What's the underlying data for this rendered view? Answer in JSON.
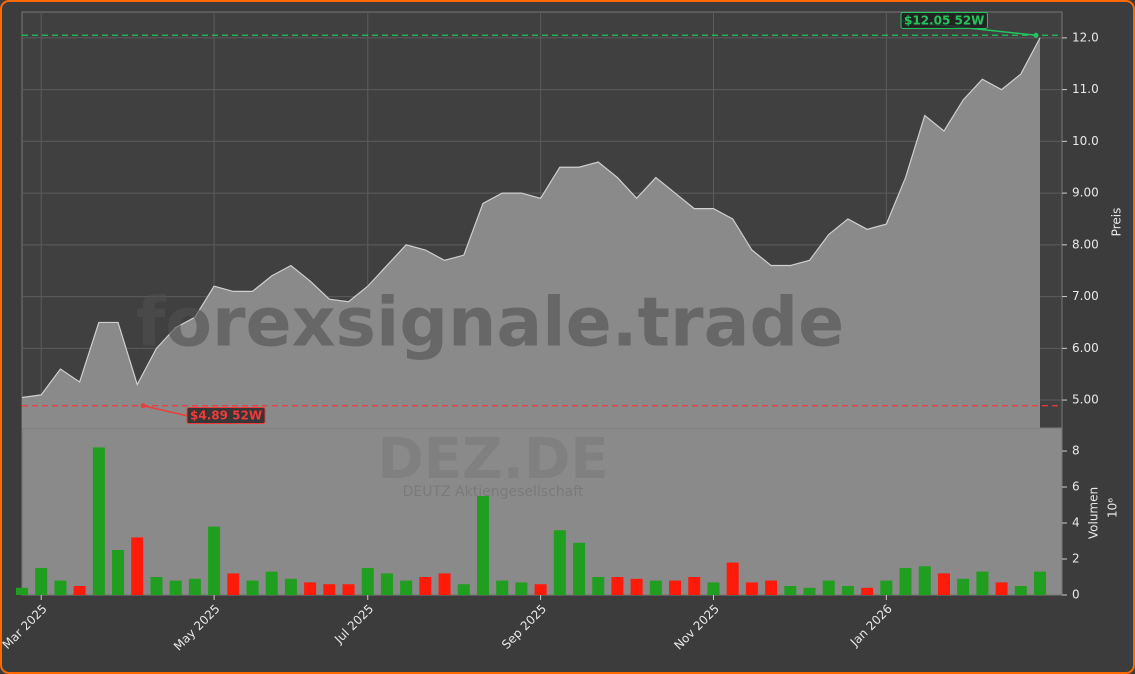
{
  "chart_data": {
    "type": "area-volume",
    "watermark": "forexsignale.trade",
    "ticker": "DEZ.DE",
    "company": "DEUTZ Aktiengesellschaft",
    "price_label": "Preis",
    "volume_label": "Volumen",
    "volume_multiplier": "10⁶",
    "categories": [
      null,
      "Mar 2025",
      null,
      null,
      null,
      null,
      null,
      null,
      null,
      null,
      "May 2025",
      null,
      null,
      null,
      null,
      null,
      null,
      null,
      "Jul 2025",
      null,
      null,
      null,
      null,
      null,
      null,
      null,
      null,
      "Sep 2025",
      null,
      null,
      null,
      null,
      null,
      null,
      null,
      null,
      "Nov 2025",
      null,
      null,
      null,
      null,
      null,
      null,
      null,
      null,
      "Jan 2026",
      null,
      null,
      null,
      null,
      null,
      null,
      null,
      null
    ],
    "series": [
      {
        "name": "Preis",
        "color": "#8a8a8a",
        "values": [
          5.05,
          5.1,
          5.6,
          5.35,
          6.5,
          6.5,
          5.3,
          6.0,
          6.4,
          6.6,
          7.2,
          7.1,
          7.1,
          7.4,
          7.6,
          7.3,
          6.95,
          6.9,
          7.2,
          7.6,
          8.0,
          7.9,
          7.7,
          7.8,
          8.8,
          9.0,
          9.0,
          8.9,
          9.5,
          9.5,
          9.6,
          9.3,
          8.9,
          9.3,
          9.0,
          8.7,
          8.7,
          8.5,
          7.9,
          7.6,
          7.6,
          7.7,
          8.2,
          8.5,
          8.3,
          8.4,
          9.3,
          10.5,
          10.2,
          10.8,
          11.2,
          11.0,
          11.3,
          12.0
        ]
      },
      {
        "name": "Volumen",
        "axis": "y2",
        "values": [
          0.4,
          1.5,
          0.8,
          0.5,
          8.2,
          2.5,
          3.2,
          1.0,
          0.8,
          0.9,
          3.8,
          1.2,
          0.8,
          1.3,
          0.9,
          0.7,
          0.6,
          0.6,
          1.5,
          1.2,
          0.8,
          1.0,
          1.2,
          0.6,
          5.5,
          0.8,
          0.7,
          0.6,
          3.6,
          2.9,
          1.0,
          1.0,
          0.9,
          0.8,
          0.8,
          1.0,
          0.7,
          1.8,
          0.7,
          0.8,
          0.5,
          0.4,
          0.8,
          0.5,
          0.4,
          0.8,
          1.5,
          1.6,
          1.2,
          0.9,
          1.3,
          0.7,
          0.5,
          1.3
        ]
      }
    ],
    "up_color": "#1f9e1f",
    "down_color": "#ff1a0a",
    "ylim": [
      4.46,
      12.5
    ],
    "yticks": [
      {
        "value": 5,
        "label": "5.00"
      },
      {
        "value": 6,
        "label": "6.00"
      },
      {
        "value": 7,
        "label": "7.00"
      },
      {
        "value": 8,
        "label": "8.00"
      },
      {
        "value": 9,
        "label": "9.00"
      },
      {
        "value": 10,
        "label": "10.0"
      },
      {
        "value": 11,
        "label": "11.0"
      },
      {
        "value": 12,
        "label": "12.0"
      }
    ],
    "y2lim": [
      0,
      9.28
    ],
    "y2ticks": [
      0,
      2,
      4,
      6,
      8
    ],
    "grid": true,
    "high_52w": {
      "value": 12.05,
      "label": "$12.05 52W",
      "color": "#22c55e"
    },
    "low_52w": {
      "value": 4.89,
      "label": "$4.89 52W",
      "color": "#ef3b3b"
    }
  }
}
